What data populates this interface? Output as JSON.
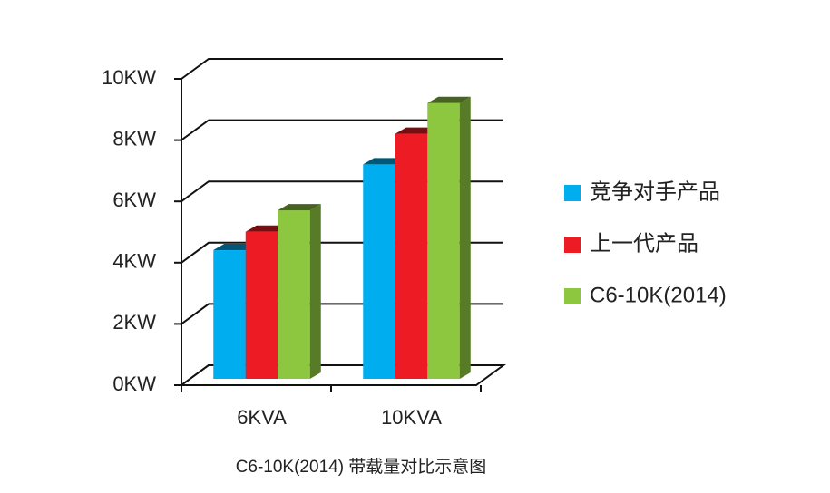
{
  "chart_data": {
    "type": "bar3d",
    "title": "C6-10K(2014) 带载量对比示意图",
    "categories": [
      "6KVA",
      "10KVA"
    ],
    "series": [
      {
        "name": "竞争对手产品",
        "color": "#00aeef",
        "values": [
          4.2,
          7.0
        ]
      },
      {
        "name": "上一代产品",
        "color": "#ed1c24",
        "values": [
          4.8,
          8.0
        ]
      },
      {
        "name": "C6-10K(2014)",
        "color": "#8dc63f",
        "values": [
          5.5,
          9.0
        ]
      }
    ],
    "ylim": [
      0,
      10
    ],
    "yticks": [
      {
        "value": 0,
        "label": "0KW"
      },
      {
        "value": 2,
        "label": "2KW"
      },
      {
        "value": 4,
        "label": "4KW"
      },
      {
        "value": 6,
        "label": "6KW"
      },
      {
        "value": 8,
        "label": "8KW"
      },
      {
        "value": 10,
        "label": "10KW"
      }
    ],
    "grid": true,
    "legend": "right"
  }
}
